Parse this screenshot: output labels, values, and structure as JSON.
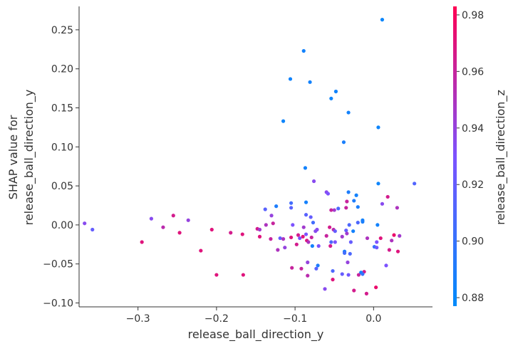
{
  "chart_data": {
    "type": "scatter",
    "title": "",
    "xlabel": "release_ball_direction_y",
    "ylabel_lines": [
      "SHAP value for",
      "release_ball_direction_y"
    ],
    "xlim": [
      -0.375,
      0.075
    ],
    "ylim": [
      -0.105,
      0.28
    ],
    "x_ticks": [
      -0.3,
      -0.2,
      -0.1,
      0.0
    ],
    "x_tick_labels": [
      "−0.3",
      "−0.2",
      "−0.1",
      "0.0"
    ],
    "y_ticks": [
      -0.1,
      -0.05,
      0.0,
      0.05,
      0.1,
      0.15,
      0.2,
      0.25
    ],
    "y_tick_labels": [
      "−0.10",
      "−0.05",
      "0.00",
      "0.05",
      "0.10",
      "0.15",
      "0.20",
      "0.25"
    ],
    "colorbar": {
      "label": "release_ball_direction_z",
      "range": [
        0.877,
        0.983
      ],
      "ticks": [
        0.88,
        0.9,
        0.92,
        0.94,
        0.96,
        0.98
      ],
      "tick_labels": [
        "0.88",
        "0.90",
        "0.92",
        "0.94",
        "0.96",
        "0.98"
      ],
      "color_low": "#008bfb",
      "color_mid": "#7c52ff",
      "color_high": "#ff0052"
    },
    "grid": false,
    "points": [
      {
        "x": 0.011,
        "y": 0.263,
        "c": 0.882
      },
      {
        "x": -0.089,
        "y": 0.223,
        "c": 0.885
      },
      {
        "x": -0.106,
        "y": 0.187,
        "c": 0.884
      },
      {
        "x": -0.081,
        "y": 0.183,
        "c": 0.885
      },
      {
        "x": -0.048,
        "y": 0.171,
        "c": 0.884
      },
      {
        "x": -0.054,
        "y": 0.162,
        "c": 0.883
      },
      {
        "x": -0.032,
        "y": 0.144,
        "c": 0.885
      },
      {
        "x": -0.115,
        "y": 0.133,
        "c": 0.883
      },
      {
        "x": 0.006,
        "y": 0.125,
        "c": 0.883
      },
      {
        "x": -0.038,
        "y": 0.106,
        "c": 0.888
      },
      {
        "x": -0.087,
        "y": 0.073,
        "c": 0.885
      },
      {
        "x": -0.076,
        "y": 0.056,
        "c": 0.935
      },
      {
        "x": 0.006,
        "y": 0.053,
        "c": 0.883
      },
      {
        "x": 0.052,
        "y": 0.053,
        "c": 0.912
      },
      {
        "x": -0.06,
        "y": 0.042,
        "c": 0.935
      },
      {
        "x": -0.058,
        "y": 0.04,
        "c": 0.93
      },
      {
        "x": -0.032,
        "y": 0.042,
        "c": 0.89
      },
      {
        "x": -0.022,
        "y": 0.038,
        "c": 0.885
      },
      {
        "x": 0.018,
        "y": 0.036,
        "c": 0.965
      },
      {
        "x": -0.034,
        "y": 0.03,
        "c": 0.96
      },
      {
        "x": -0.025,
        "y": 0.031,
        "c": 0.89
      },
      {
        "x": -0.086,
        "y": 0.029,
        "c": 0.886
      },
      {
        "x": -0.105,
        "y": 0.028,
        "c": 0.905
      },
      {
        "x": 0.011,
        "y": 0.027,
        "c": 0.935
      },
      {
        "x": -0.124,
        "y": 0.024,
        "c": 0.89
      },
      {
        "x": -0.02,
        "y": 0.023,
        "c": 0.888
      },
      {
        "x": 0.03,
        "y": 0.022,
        "c": 0.95
      },
      {
        "x": -0.105,
        "y": 0.022,
        "c": 0.915
      },
      {
        "x": -0.045,
        "y": 0.021,
        "c": 0.91
      },
      {
        "x": -0.035,
        "y": 0.022,
        "c": 0.96
      },
      {
        "x": -0.05,
        "y": 0.019,
        "c": 0.945
      },
      {
        "x": -0.054,
        "y": 0.019,
        "c": 0.96
      },
      {
        "x": -0.138,
        "y": 0.02,
        "c": 0.915
      },
      {
        "x": -0.086,
        "y": 0.013,
        "c": 0.915
      },
      {
        "x": -0.08,
        "y": 0.01,
        "c": 0.92
      },
      {
        "x": -0.13,
        "y": 0.012,
        "c": 0.94
      },
      {
        "x": -0.255,
        "y": 0.012,
        "c": 0.965
      },
      {
        "x": -0.283,
        "y": 0.008,
        "c": 0.935
      },
      {
        "x": -0.236,
        "y": 0.006,
        "c": 0.94
      },
      {
        "x": -0.014,
        "y": 0.006,
        "c": 0.885
      },
      {
        "x": -0.014,
        "y": 0.004,
        "c": 0.888
      },
      {
        "x": -0.077,
        "y": 0.003,
        "c": 0.905
      },
      {
        "x": -0.368,
        "y": 0.002,
        "c": 0.935
      },
      {
        "x": -0.128,
        "y": 0.002,
        "c": 0.96
      },
      {
        "x": -0.02,
        "y": 0.003,
        "c": 0.91
      },
      {
        "x": -0.137,
        "y": 0.0,
        "c": 0.95
      },
      {
        "x": -0.103,
        "y": 0.0,
        "c": 0.93
      },
      {
        "x": -0.031,
        "y": 0.0,
        "c": 0.91
      },
      {
        "x": 0.005,
        "y": 0.0,
        "c": 0.885
      },
      {
        "x": -0.089,
        "y": -0.003,
        "c": 0.945
      },
      {
        "x": -0.268,
        "y": -0.003,
        "c": 0.955
      },
      {
        "x": -0.056,
        "y": -0.003,
        "c": 0.965
      },
      {
        "x": -0.148,
        "y": -0.005,
        "c": 0.965
      },
      {
        "x": -0.206,
        "y": -0.006,
        "c": 0.97
      },
      {
        "x": -0.072,
        "y": -0.006,
        "c": 0.935
      },
      {
        "x": -0.145,
        "y": -0.006,
        "c": 0.945
      },
      {
        "x": -0.358,
        "y": -0.006,
        "c": 0.92
      },
      {
        "x": -0.035,
        "y": -0.007,
        "c": 0.92
      },
      {
        "x": -0.051,
        "y": -0.006,
        "c": 0.955
      },
      {
        "x": -0.049,
        "y": -0.008,
        "c": 0.92
      },
      {
        "x": -0.026,
        "y": -0.008,
        "c": 0.885
      },
      {
        "x": -0.074,
        "y": -0.008,
        "c": 0.935
      },
      {
        "x": -0.182,
        "y": -0.01,
        "c": 0.965
      },
      {
        "x": -0.247,
        "y": -0.01,
        "c": 0.97
      },
      {
        "x": -0.167,
        "y": -0.012,
        "c": 0.97
      },
      {
        "x": -0.034,
        "y": -0.011,
        "c": 0.945
      },
      {
        "x": -0.086,
        "y": -0.012,
        "c": 0.93
      },
      {
        "x": -0.096,
        "y": -0.013,
        "c": 0.965
      },
      {
        "x": -0.06,
        "y": -0.014,
        "c": 0.96
      },
      {
        "x": -0.145,
        "y": -0.015,
        "c": 0.97
      },
      {
        "x": 0.026,
        "y": -0.013,
        "c": 0.975
      },
      {
        "x": 0.033,
        "y": -0.014,
        "c": 0.945
      },
      {
        "x": -0.105,
        "y": -0.016,
        "c": 0.97
      },
      {
        "x": -0.09,
        "y": -0.015,
        "c": 0.97
      },
      {
        "x": -0.079,
        "y": -0.016,
        "c": 0.96
      },
      {
        "x": -0.04,
        "y": -0.015,
        "c": 0.945
      },
      {
        "x": -0.094,
        "y": -0.017,
        "c": 0.93
      },
      {
        "x": -0.008,
        "y": -0.017,
        "c": 0.95
      },
      {
        "x": -0.131,
        "y": -0.018,
        "c": 0.96
      },
      {
        "x": -0.119,
        "y": -0.017,
        "c": 0.92
      },
      {
        "x": 0.009,
        "y": -0.017,
        "c": 0.97
      },
      {
        "x": -0.115,
        "y": -0.018,
        "c": 0.95
      },
      {
        "x": -0.085,
        "y": -0.02,
        "c": 0.97
      },
      {
        "x": -0.054,
        "y": -0.022,
        "c": 0.91
      },
      {
        "x": -0.083,
        "y": -0.022,
        "c": 0.95
      },
      {
        "x": -0.295,
        "y": -0.022,
        "c": 0.97
      },
      {
        "x": -0.049,
        "y": -0.022,
        "c": 0.93
      },
      {
        "x": 0.004,
        "y": -0.022,
        "c": 0.93
      },
      {
        "x": 0.023,
        "y": -0.02,
        "c": 0.95
      },
      {
        "x": -0.029,
        "y": -0.022,
        "c": 0.92
      },
      {
        "x": -0.098,
        "y": -0.025,
        "c": 0.965
      },
      {
        "x": -0.078,
        "y": -0.027,
        "c": 0.885
      },
      {
        "x": -0.07,
        "y": -0.027,
        "c": 0.93
      },
      {
        "x": -0.113,
        "y": -0.029,
        "c": 0.94
      },
      {
        "x": -0.055,
        "y": -0.027,
        "c": 0.965
      },
      {
        "x": 0.001,
        "y": -0.028,
        "c": 0.9
      },
      {
        "x": 0.004,
        "y": -0.029,
        "c": 0.925
      },
      {
        "x": -0.122,
        "y": -0.032,
        "c": 0.95
      },
      {
        "x": -0.22,
        "y": -0.033,
        "c": 0.97
      },
      {
        "x": 0.02,
        "y": -0.032,
        "c": 0.965
      },
      {
        "x": 0.031,
        "y": -0.034,
        "c": 0.97
      },
      {
        "x": -0.037,
        "y": -0.034,
        "c": 0.89
      },
      {
        "x": -0.037,
        "y": -0.036,
        "c": 0.905
      },
      {
        "x": -0.03,
        "y": -0.037,
        "c": 0.91
      },
      {
        "x": -0.084,
        "y": -0.048,
        "c": 0.94
      },
      {
        "x": -0.033,
        "y": -0.048,
        "c": 0.94
      },
      {
        "x": -0.071,
        "y": -0.052,
        "c": 0.89
      },
      {
        "x": 0.016,
        "y": -0.052,
        "c": 0.93
      },
      {
        "x": -0.104,
        "y": -0.055,
        "c": 0.96
      },
      {
        "x": -0.092,
        "y": -0.056,
        "c": 0.96
      },
      {
        "x": -0.073,
        "y": -0.056,
        "c": 0.915
      },
      {
        "x": -0.052,
        "y": -0.059,
        "c": 0.91
      },
      {
        "x": -0.012,
        "y": -0.06,
        "c": 0.965
      },
      {
        "x": -0.016,
        "y": -0.061,
        "c": 0.885
      },
      {
        "x": -0.014,
        "y": -0.063,
        "c": 0.9
      },
      {
        "x": -0.04,
        "y": -0.063,
        "c": 0.92
      },
      {
        "x": -0.032,
        "y": -0.064,
        "c": 0.925
      },
      {
        "x": -0.019,
        "y": -0.064,
        "c": 0.96
      },
      {
        "x": -0.2,
        "y": -0.064,
        "c": 0.97
      },
      {
        "x": -0.166,
        "y": -0.064,
        "c": 0.97
      },
      {
        "x": -0.084,
        "y": -0.065,
        "c": 0.955
      },
      {
        "x": -0.052,
        "y": -0.07,
        "c": 0.97
      },
      {
        "x": -0.025,
        "y": -0.084,
        "c": 0.965
      },
      {
        "x": -0.062,
        "y": -0.082,
        "c": 0.935
      },
      {
        "x": 0.003,
        "y": -0.08,
        "c": 0.975
      },
      {
        "x": -0.009,
        "y": -0.088,
        "c": 0.965
      }
    ]
  }
}
